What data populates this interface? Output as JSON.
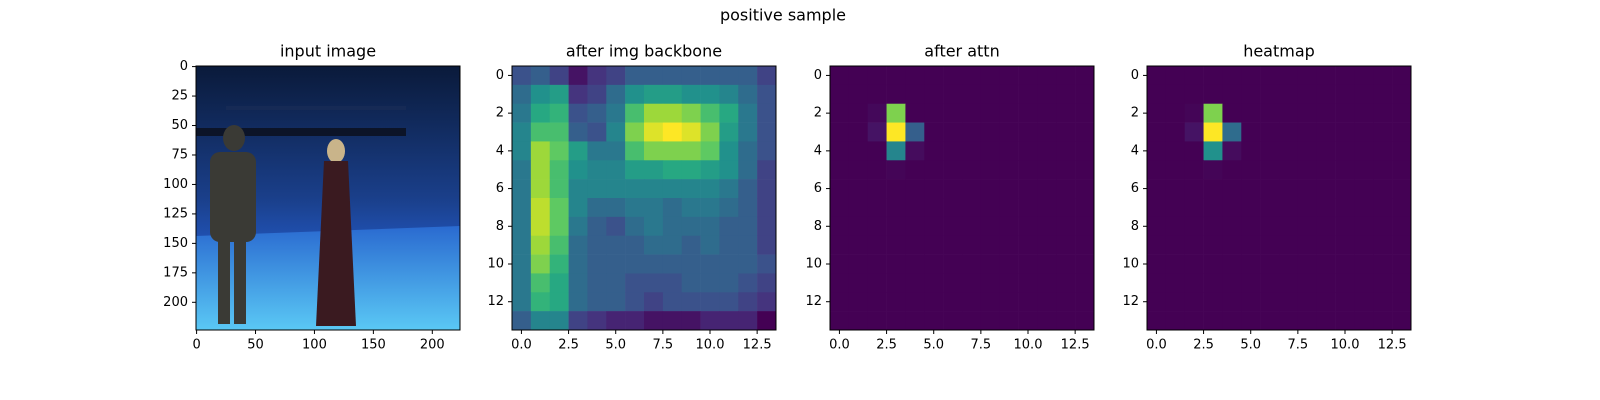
{
  "title": "positive sample",
  "chart_data": [
    {
      "type": "image",
      "title": "input image",
      "xlim": [
        -0.5,
        223.5
      ],
      "ylim": [
        223.5,
        -0.5
      ],
      "xticks": [
        0,
        50,
        100,
        150,
        200
      ],
      "yticks": [
        0,
        25,
        50,
        75,
        100,
        125,
        150,
        175,
        200
      ]
    },
    {
      "type": "heatmap",
      "title": "after img backbone",
      "colormap": "viridis",
      "xlim": [
        -0.5,
        13.5
      ],
      "ylim": [
        13.5,
        -0.5
      ],
      "xticks": [
        {
          "value": 0,
          "label": "0.0"
        },
        2.5,
        {
          "value": 5,
          "label": "5.0"
        },
        7.5,
        {
          "value": 10,
          "label": "10.0"
        },
        12.5
      ],
      "yticks": [
        0,
        2,
        4,
        6,
        8,
        10,
        12
      ],
      "z": [
        [
          0.25,
          0.3,
          0.2,
          0.05,
          0.15,
          0.2,
          0.3,
          0.3,
          0.3,
          0.3,
          0.3,
          0.3,
          0.3,
          0.2
        ],
        [
          0.35,
          0.5,
          0.55,
          0.15,
          0.2,
          0.35,
          0.5,
          0.55,
          0.55,
          0.5,
          0.5,
          0.45,
          0.35,
          0.25
        ],
        [
          0.4,
          0.6,
          0.65,
          0.25,
          0.3,
          0.4,
          0.7,
          0.85,
          0.85,
          0.8,
          0.7,
          0.6,
          0.4,
          0.25
        ],
        [
          0.45,
          0.7,
          0.7,
          0.3,
          0.25,
          0.45,
          0.8,
          0.95,
          1.0,
          0.95,
          0.8,
          0.55,
          0.4,
          0.25
        ],
        [
          0.45,
          0.85,
          0.75,
          0.55,
          0.4,
          0.4,
          0.7,
          0.8,
          0.8,
          0.8,
          0.75,
          0.5,
          0.35,
          0.25
        ],
        [
          0.4,
          0.85,
          0.7,
          0.5,
          0.45,
          0.45,
          0.55,
          0.55,
          0.6,
          0.6,
          0.55,
          0.5,
          0.35,
          0.2
        ],
        [
          0.4,
          0.85,
          0.7,
          0.45,
          0.45,
          0.45,
          0.45,
          0.45,
          0.45,
          0.45,
          0.45,
          0.4,
          0.3,
          0.2
        ],
        [
          0.4,
          0.9,
          0.75,
          0.45,
          0.35,
          0.35,
          0.4,
          0.4,
          0.35,
          0.4,
          0.4,
          0.35,
          0.3,
          0.2
        ],
        [
          0.4,
          0.9,
          0.75,
          0.4,
          0.3,
          0.25,
          0.35,
          0.4,
          0.35,
          0.35,
          0.35,
          0.3,
          0.3,
          0.2
        ],
        [
          0.4,
          0.85,
          0.7,
          0.35,
          0.3,
          0.3,
          0.3,
          0.35,
          0.35,
          0.3,
          0.35,
          0.3,
          0.3,
          0.2
        ],
        [
          0.4,
          0.8,
          0.65,
          0.35,
          0.3,
          0.3,
          0.3,
          0.3,
          0.3,
          0.3,
          0.3,
          0.3,
          0.3,
          0.25
        ],
        [
          0.4,
          0.7,
          0.6,
          0.35,
          0.3,
          0.3,
          0.25,
          0.25,
          0.25,
          0.3,
          0.3,
          0.3,
          0.25,
          0.2
        ],
        [
          0.4,
          0.65,
          0.6,
          0.35,
          0.3,
          0.3,
          0.25,
          0.2,
          0.25,
          0.25,
          0.25,
          0.25,
          0.2,
          0.15
        ],
        [
          0.3,
          0.45,
          0.45,
          0.2,
          0.15,
          0.1,
          0.1,
          0.05,
          0.05,
          0.05,
          0.1,
          0.1,
          0.1,
          0.0
        ]
      ]
    },
    {
      "type": "heatmap",
      "title": "after attn",
      "colormap": "viridis",
      "xlim": [
        -0.5,
        13.5
      ],
      "ylim": [
        13.5,
        -0.5
      ],
      "xticks": [
        {
          "value": 0,
          "label": "0.0"
        },
        2.5,
        {
          "value": 5,
          "label": "5.0"
        },
        7.5,
        {
          "value": 10,
          "label": "10.0"
        },
        12.5
      ],
      "yticks": [
        0,
        2,
        4,
        6,
        8,
        10,
        12
      ],
      "z": [
        [
          0,
          0,
          0,
          0,
          0,
          0,
          0,
          0,
          0,
          0,
          0,
          0,
          0,
          0
        ],
        [
          0,
          0,
          0,
          0,
          0,
          0,
          0,
          0,
          0,
          0,
          0,
          0,
          0,
          0
        ],
        [
          0,
          0,
          0.02,
          0.8,
          0,
          0,
          0,
          0,
          0,
          0,
          0,
          0,
          0,
          0
        ],
        [
          0,
          0,
          0.05,
          1.0,
          0.3,
          0,
          0,
          0,
          0,
          0,
          0,
          0,
          0,
          0
        ],
        [
          0,
          0,
          0,
          0.45,
          0.03,
          0,
          0,
          0,
          0,
          0,
          0,
          0,
          0,
          0
        ],
        [
          0,
          0,
          0,
          0.01,
          0,
          0,
          0,
          0,
          0,
          0,
          0,
          0,
          0,
          0
        ],
        [
          0,
          0,
          0,
          0,
          0,
          0,
          0,
          0,
          0,
          0,
          0,
          0,
          0,
          0
        ],
        [
          0,
          0,
          0,
          0,
          0,
          0,
          0,
          0,
          0,
          0,
          0,
          0,
          0,
          0
        ],
        [
          0,
          0,
          0,
          0,
          0,
          0,
          0,
          0,
          0,
          0,
          0,
          0,
          0,
          0
        ],
        [
          0,
          0,
          0,
          0,
          0,
          0,
          0,
          0,
          0,
          0,
          0,
          0,
          0,
          0
        ],
        [
          0,
          0,
          0,
          0,
          0,
          0,
          0,
          0,
          0,
          0,
          0,
          0,
          0,
          0
        ],
        [
          0,
          0,
          0,
          0,
          0,
          0,
          0,
          0,
          0,
          0,
          0,
          0,
          0,
          0
        ],
        [
          0,
          0,
          0,
          0,
          0,
          0,
          0,
          0,
          0,
          0,
          0,
          0,
          0,
          0
        ],
        [
          0,
          0,
          0,
          0,
          0,
          0,
          0,
          0,
          0,
          0,
          0,
          0,
          0,
          0
        ]
      ]
    },
    {
      "type": "heatmap",
      "title": "heatmap",
      "colormap": "viridis",
      "xlim": [
        -0.5,
        13.5
      ],
      "ylim": [
        13.5,
        -0.5
      ],
      "xticks": [
        {
          "value": 0,
          "label": "0.0"
        },
        2.5,
        {
          "value": 5,
          "label": "5.0"
        },
        7.5,
        {
          "value": 10,
          "label": "10.0"
        },
        12.5
      ],
      "yticks": [
        0,
        2,
        4,
        6,
        8,
        10,
        12
      ],
      "z": [
        [
          0,
          0,
          0,
          0,
          0,
          0,
          0,
          0,
          0,
          0,
          0,
          0,
          0,
          0
        ],
        [
          0,
          0,
          0,
          0,
          0,
          0,
          0,
          0,
          0,
          0,
          0,
          0,
          0,
          0
        ],
        [
          0,
          0,
          0.01,
          0.8,
          0,
          0,
          0,
          0,
          0,
          0,
          0,
          0,
          0,
          0
        ],
        [
          0,
          0,
          0.05,
          1.0,
          0.35,
          0,
          0,
          0,
          0,
          0,
          0,
          0,
          0,
          0
        ],
        [
          0,
          0,
          0,
          0.5,
          0.03,
          0,
          0,
          0,
          0,
          0,
          0,
          0,
          0,
          0
        ],
        [
          0,
          0,
          0,
          0.01,
          0,
          0,
          0,
          0,
          0,
          0,
          0,
          0,
          0,
          0
        ],
        [
          0,
          0,
          0,
          0,
          0,
          0,
          0,
          0,
          0,
          0,
          0,
          0,
          0,
          0
        ],
        [
          0,
          0,
          0,
          0,
          0,
          0,
          0,
          0,
          0,
          0,
          0,
          0,
          0,
          0
        ],
        [
          0,
          0,
          0,
          0,
          0,
          0,
          0,
          0,
          0,
          0,
          0,
          0,
          0,
          0
        ],
        [
          0,
          0,
          0,
          0,
          0,
          0,
          0,
          0,
          0,
          0,
          0,
          0,
          0,
          0
        ],
        [
          0,
          0,
          0,
          0,
          0,
          0,
          0,
          0,
          0,
          0,
          0,
          0,
          0,
          0
        ],
        [
          0,
          0,
          0,
          0,
          0,
          0,
          0,
          0,
          0,
          0,
          0,
          0,
          0,
          0
        ],
        [
          0,
          0,
          0,
          0,
          0,
          0,
          0,
          0,
          0,
          0,
          0,
          0,
          0,
          0
        ],
        [
          0,
          0,
          0,
          0,
          0,
          0,
          0,
          0,
          0,
          0,
          0,
          0,
          0,
          0
        ]
      ]
    }
  ]
}
